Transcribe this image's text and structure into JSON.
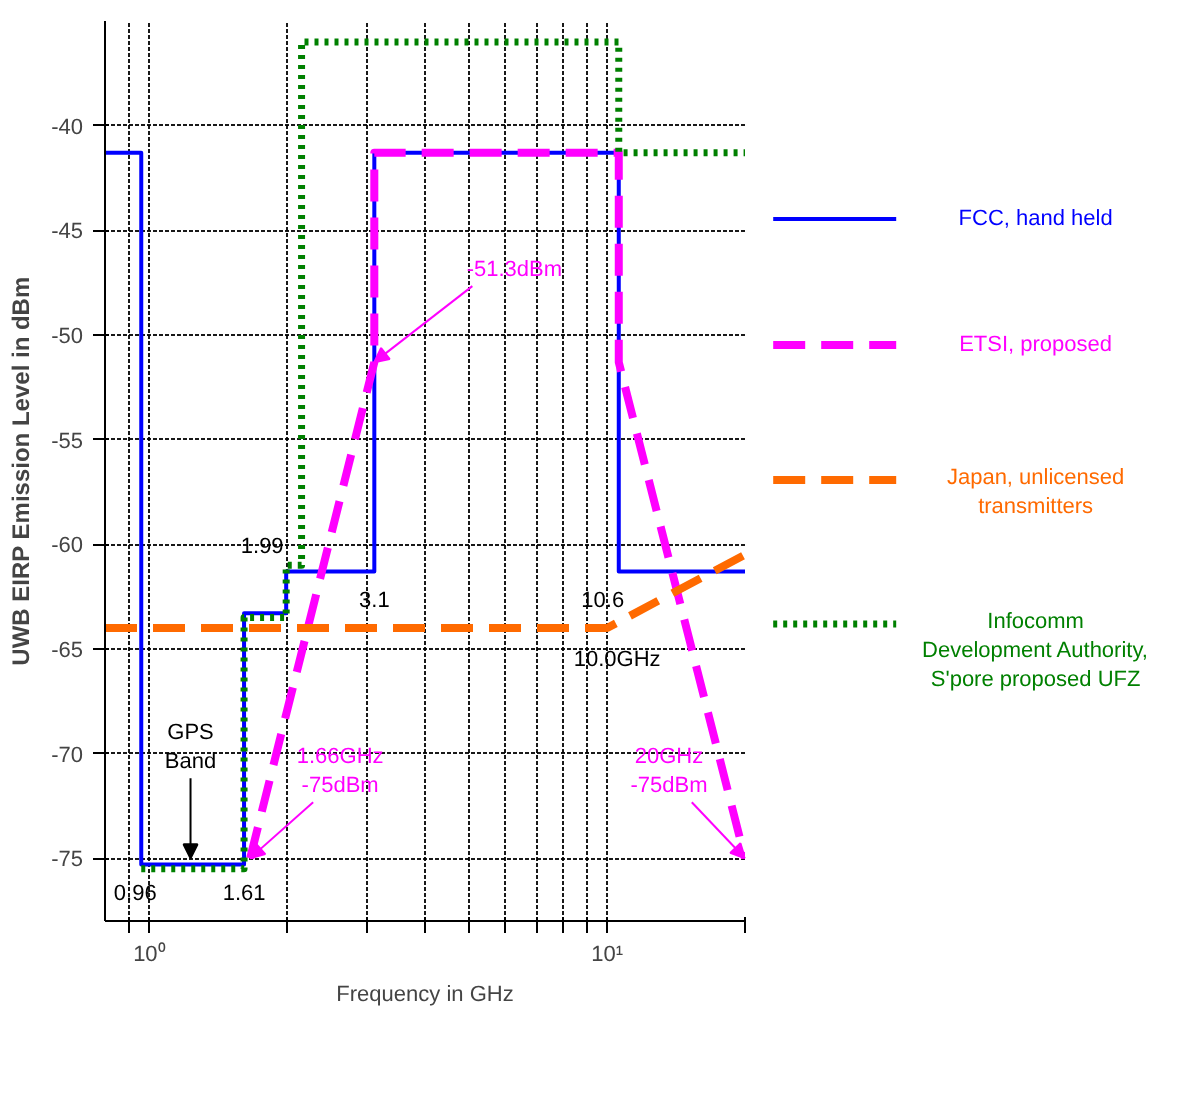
{
  "chart_data": {
    "type": "line",
    "xlabel": "Frequency in GHz",
    "ylabel": "UWB EIRP Emission Level in dBm",
    "log": "x",
    "xlim": [
      0.8,
      20
    ],
    "ylim": [
      -78,
      -35
    ],
    "xticks": [
      {
        "value": 0.9,
        "label": null
      },
      {
        "value": 1,
        "label": "10⁰"
      },
      {
        "value": 2,
        "label": null
      },
      {
        "value": 3,
        "label": null
      },
      {
        "value": 4,
        "label": null
      },
      {
        "value": 5,
        "label": null
      },
      {
        "value": 6,
        "label": null
      },
      {
        "value": 7,
        "label": null
      },
      {
        "value": 8,
        "label": null
      },
      {
        "value": 9,
        "label": null
      },
      {
        "value": 10,
        "label": "10¹"
      },
      {
        "value": 20,
        "label": null
      }
    ],
    "yticks": [
      -40,
      -45,
      -50,
      -55,
      -60,
      -65,
      -70,
      -75
    ],
    "grid": true,
    "legend": "right",
    "series": [
      {
        "name": "FCC, hand held",
        "color": "#0000ff",
        "line_style": "solid",
        "x": [
          0.8,
          0.96,
          0.96,
          1.61,
          1.61,
          1.99,
          1.99,
          3.1,
          3.1,
          10.6,
          10.6,
          20
        ],
        "values": [
          -41.3,
          -41.3,
          -75.3,
          -75.3,
          -63.3,
          -63.3,
          -61.3,
          -61.3,
          -41.3,
          -41.3,
          -61.3,
          -61.3
        ]
      },
      {
        "name": "ETSI, proposed",
        "color": "#ff00ff",
        "line_style": "dashed",
        "x": [
          1.66,
          3.1,
          3.1,
          10.6,
          10.6,
          20
        ],
        "values": [
          -75,
          -51.3,
          -41.3,
          -41.3,
          -51.3,
          -75
        ]
      },
      {
        "name": "Japan, unlicensed\ntransmitters",
        "color": "#ff6a00",
        "line_style": "dashed",
        "x": [
          0.8,
          10,
          20
        ],
        "values": [
          -64,
          -64,
          -60.5
        ]
      },
      {
        "name": "Infocomm\nDevelopment Authority,\nS'pore proposed UFZ",
        "color": "#008000",
        "line_style": "dotted",
        "x": [
          0.96,
          1.61,
          1.61,
          1.99,
          1.99,
          2.15,
          2.15,
          10.6,
          10.6,
          20
        ],
        "values": [
          -75.5,
          -75.5,
          -63.5,
          -63.5,
          -61,
          -61,
          -36,
          -36,
          -41.3,
          -41.3
        ]
      }
    ],
    "annotations": [
      {
        "text": "-51.3dBm",
        "x": 3.1,
        "y": -51.3
      },
      {
        "text": "1.66GHz\n-75dBm",
        "x": 1.66,
        "y": -75
      },
      {
        "text": "20GHz\n-75dBm",
        "x": 20,
        "y": -75
      },
      {
        "text": "GPS\nBand",
        "x": 1.23,
        "y": -75
      },
      {
        "text": "0.96",
        "x": 0.96,
        "y": -75.3
      },
      {
        "text": "1.61",
        "x": 1.61,
        "y": -75.3
      },
      {
        "text": "1.99",
        "x": 1.99,
        "y": -61
      },
      {
        "text": "3.1",
        "x": 3.1,
        "y": -61.3
      },
      {
        "text": "10.6",
        "x": 10.6,
        "y": -61.3
      },
      {
        "text": "10.0GHz",
        "x": 10,
        "y": -64
      }
    ]
  }
}
